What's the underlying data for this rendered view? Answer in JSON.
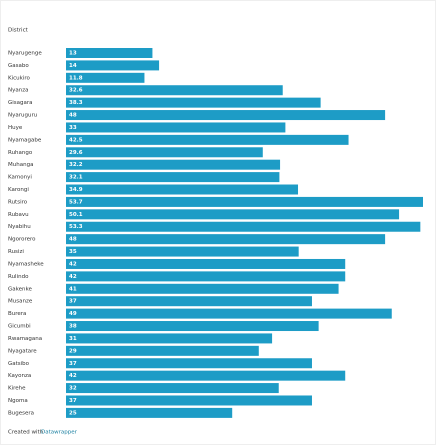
{
  "chart_data": {
    "type": "bar",
    "column_header": "District",
    "categories": [
      "Nyarugenge",
      "Gasabo",
      "Kicukiro",
      "Nyanza",
      "Gisagara",
      "Nyaruguru",
      "Huye",
      "Nyamagabe",
      "Ruhango",
      "Muhanga",
      "Kamonyi",
      "Karongi",
      "Rutsiro",
      "Rubavu",
      "Nyabihu",
      "Ngororero",
      "Rusizi",
      "Nyamasheke",
      "Rulindo",
      "Gakenke",
      "Musanze",
      "Burera",
      "Gicumbi",
      "Rwamagana",
      "Nyagatare",
      "Gatsibo",
      "Kayonza",
      "Kirehe",
      "Ngoma",
      "Bugesera"
    ],
    "values": [
      13,
      14,
      11.8,
      32.6,
      38.3,
      48,
      33,
      42.5,
      29.6,
      32.2,
      32.1,
      34.9,
      53.7,
      50.1,
      53.3,
      48,
      35,
      42,
      42,
      41,
      37,
      49,
      38,
      31,
      29,
      37,
      42,
      32,
      37,
      25
    ],
    "color": "#1d9cc6",
    "credit": "Created with",
    "credit_link": "Datawrapper"
  }
}
